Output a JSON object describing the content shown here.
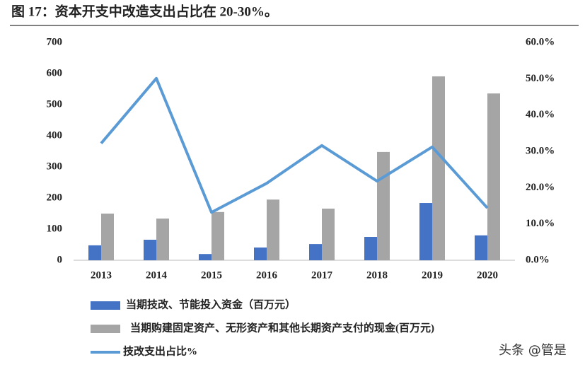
{
  "chart_data": {
    "type": "bar-line",
    "title": "图 17：资本开支中改造支出占比在 20-30%。",
    "categories": [
      "2013",
      "2014",
      "2015",
      "2016",
      "2017",
      "2018",
      "2019",
      "2020"
    ],
    "series": [
      {
        "name": "当期技改、节能投入资金（百万元）",
        "type": "bar",
        "color": "#4472c4",
        "values": [
          48,
          66,
          20,
          41,
          52,
          75,
          184,
          80
        ]
      },
      {
        "name": "当期购建固定资产、无形资产和其他长期资产支付的现金(百万元)",
        "type": "bar",
        "color": "#a5a5a5",
        "values": [
          150,
          134,
          155,
          195,
          166,
          348,
          591,
          536
        ]
      },
      {
        "name": "技改支出占比%",
        "type": "line",
        "axis": "y2",
        "color": "#5b9bd5",
        "values": [
          32.2,
          50.1,
          13.2,
          21.2,
          31.6,
          21.8,
          31.2,
          14.4
        ]
      }
    ],
    "ylim": [
      0,
      700
    ],
    "yticks": [
      0,
      100,
      200,
      300,
      400,
      500,
      600,
      700
    ],
    "y2lim": [
      0,
      60
    ],
    "y2ticks": [
      {
        "value": 0,
        "label": "0.0%"
      },
      {
        "value": 10,
        "label": "10.0%"
      },
      {
        "value": 20,
        "label": "20.0%"
      },
      {
        "value": 30,
        "label": "30.0%"
      },
      {
        "value": 40,
        "label": "40.0%"
      },
      {
        "value": 50,
        "label": "50.0%"
      },
      {
        "value": 60,
        "label": "60.0%"
      }
    ],
    "legend": "bottom",
    "watermark": "头条 @管是"
  }
}
